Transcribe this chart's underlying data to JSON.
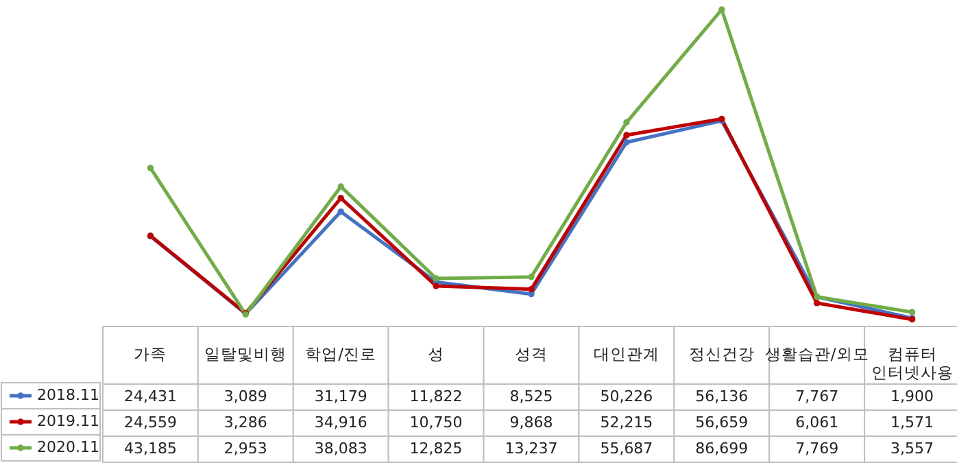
{
  "chart_data": {
    "type": "line",
    "categories": [
      "가족",
      "일탈및비행",
      "학업/진로",
      "성",
      "성격",
      "대인관계",
      "정신건강",
      "생활습관/외모",
      "컴퓨터\n인터넷사용"
    ],
    "series": [
      {
        "name": "2018.11",
        "color": "#4472c4",
        "values": [
          24431,
          3089,
          31179,
          11822,
          8525,
          50226,
          56136,
          7767,
          1900
        ],
        "value_labels": [
          "24,431",
          "3,089",
          "31,179",
          "11,822",
          "8,525",
          "50,226",
          "56,136",
          "7,767",
          "1,900"
        ]
      },
      {
        "name": "2019.11",
        "color": "#c00000",
        "values": [
          24559,
          3286,
          34916,
          10750,
          9868,
          52215,
          56659,
          6061,
          1571
        ],
        "value_labels": [
          "24,559",
          "3,286",
          "34,916",
          "10,750",
          "9,868",
          "52,215",
          "56,659",
          "6,061",
          "1,571"
        ]
      },
      {
        "name": "2020.11",
        "color": "#70ad47",
        "values": [
          43185,
          2953,
          38083,
          12825,
          13237,
          55687,
          86699,
          7769,
          3557
        ],
        "value_labels": [
          "43,185",
          "2,953",
          "38,083",
          "12,825",
          "13,237",
          "55,687",
          "86,699",
          "7,769",
          "3,557"
        ]
      }
    ],
    "marker": "circle",
    "legend": "bottom left"
  }
}
